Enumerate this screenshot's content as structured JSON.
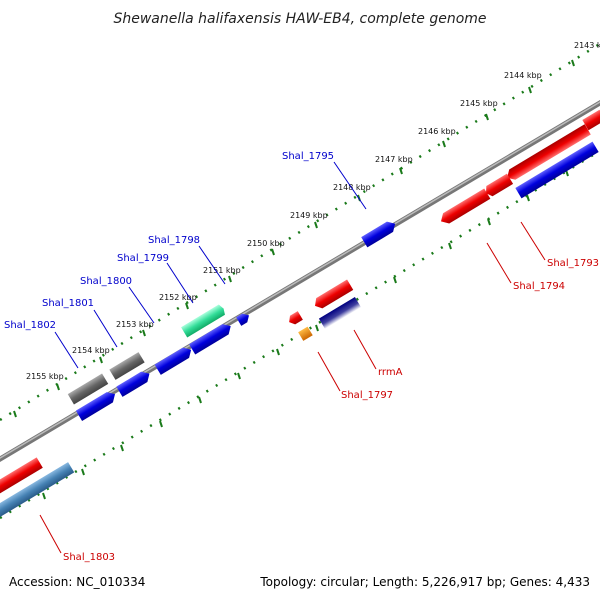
{
  "title": "Shewanella halifaxensis HAW-EB4, complete genome",
  "footer": {
    "accession": "Accession: NC_010334",
    "topology": "Topology: circular; Length: 5,226,917 bp; Genes: 4,433"
  },
  "ticks": [
    "2143 kbp",
    "2144 kbp",
    "2145 kbp",
    "2146 kbp",
    "2147 kbp",
    "2148 kbp",
    "2149 kbp",
    "2150 kbp",
    "2151 kbp",
    "2152 kbp",
    "2153 kbp",
    "2154 kbp",
    "2155 kbp"
  ],
  "gene_labels": {
    "shal_1795": "Shal_1795",
    "shal_1798": "Shal_1798",
    "shal_1799": "Shal_1799",
    "shal_1800": "Shal_1800",
    "shal_1801": "Shal_1801",
    "shal_1802": "Shal_1802",
    "shal_1793": "Shal_1793",
    "shal_1794": "Shal_1794",
    "rrma": "rrmA",
    "shal_1797": "Shal_1797",
    "shal_1803": "Shal_1803"
  },
  "colors": {
    "forward_gene": "#0000dd",
    "reverse_gene": "#ee0000",
    "pseudo_gene": "#666666",
    "rna_gene": "#33dd99",
    "steel_gene": "#4682b4",
    "navy_gene": "#000080",
    "orange_gene": "#ee8800",
    "backbone": "#888888",
    "tick_marks": "#1a7a1a"
  }
}
